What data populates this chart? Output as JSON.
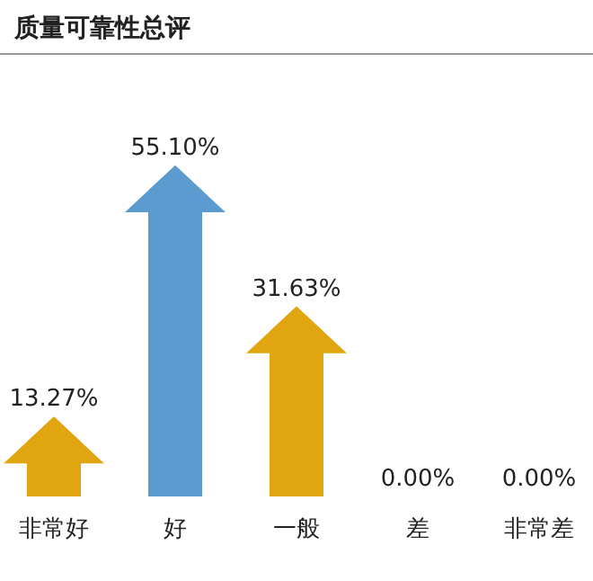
{
  "chart_data": {
    "type": "bar",
    "title": "质量可靠性总评",
    "categories": [
      "非常好",
      "好",
      "一般",
      "差",
      "非常差"
    ],
    "values": [
      13.27,
      55.1,
      31.63,
      0,
      0
    ],
    "value_labels": [
      "13.27%",
      "55.10%",
      "31.63%",
      "0.00%",
      "0.00%"
    ],
    "colors": [
      "#e0a50f",
      "#5b9bcf",
      "#e0a50f",
      "#e0a50f",
      "#e0a50f"
    ]
  }
}
